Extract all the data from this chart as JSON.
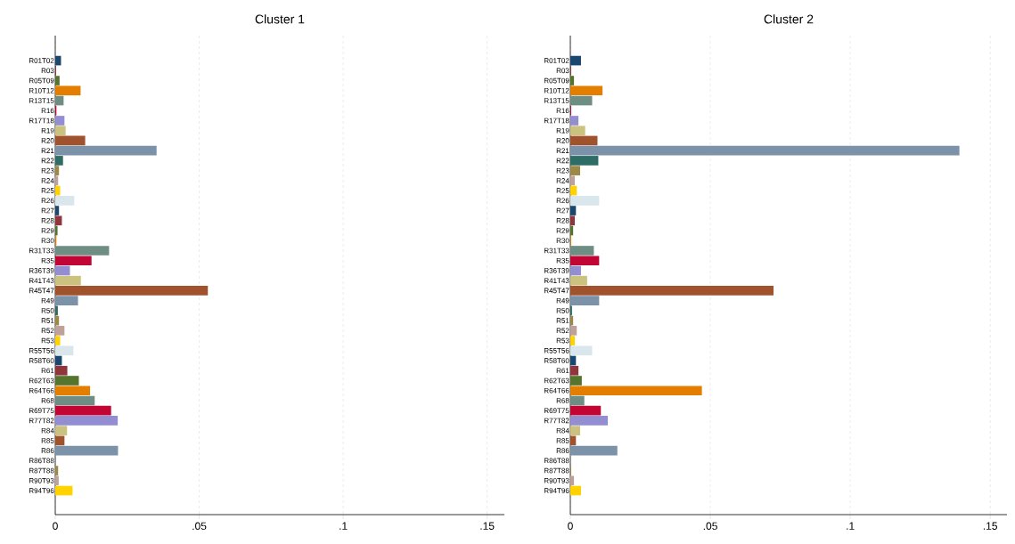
{
  "chart_data": [
    {
      "type": "bar",
      "orientation": "horizontal",
      "title": "Cluster 1",
      "grid": "x",
      "categories": [
        "R01T02",
        "R03",
        "R05T09",
        "R10T12",
        "R13T15",
        "R16",
        "R17T18",
        "R19",
        "R20",
        "R21",
        "R22",
        "R23",
        "R24",
        "R25",
        "R26",
        "R27",
        "R28",
        "R29",
        "R30",
        "R31T33",
        "R35",
        "R36T39",
        "R41T43",
        "R45T47",
        "R49",
        "R50",
        "R51",
        "R52",
        "R53",
        "R55T56",
        "R58T60",
        "R61",
        "R62T63",
        "R64T66",
        "R68",
        "R69T75",
        "R77T82",
        "R84",
        "R85",
        "R86",
        "R86T88",
        "R87T88",
        "R90T93",
        "R94T96"
      ],
      "values": [
        0.002,
        0.0003,
        0.0015,
        0.0088,
        0.0029,
        0.0004,
        0.0032,
        0.0036,
        0.0104,
        0.0352,
        0.0027,
        0.0013,
        0.001,
        0.0017,
        0.0066,
        0.0013,
        0.0023,
        0.0008,
        0.0004,
        0.0187,
        0.0126,
        0.0051,
        0.0089,
        0.053,
        0.0079,
        0.0009,
        0.0013,
        0.0032,
        0.0017,
        0.0063,
        0.0023,
        0.0042,
        0.0082,
        0.0121,
        0.0137,
        0.0194,
        0.0217,
        0.0041,
        0.0032,
        0.0218,
        0,
        0.001,
        0.0012,
        0.006
      ],
      "colors": [
        "#1a476f",
        "#90353b",
        "#55752f",
        "#e37e00",
        "#6e8e84",
        "#c10534",
        "#938dd2",
        "#cac27e",
        "#a0522d",
        "#7b92a8",
        "#2d6d66",
        "#9c8847",
        "#bfa19c",
        "#ffd200",
        "#d9e6eb",
        "#1a476f",
        "#90353b",
        "#55752f",
        "#e37e00",
        "#6e8e84",
        "#c10534",
        "#938dd2",
        "#cac27e",
        "#a0522d",
        "#7b92a8",
        "#2d6d66",
        "#9c8847",
        "#bfa19c",
        "#ffd200",
        "#d9e6eb",
        "#1a476f",
        "#90353b",
        "#55752f",
        "#e37e00",
        "#6e8e84",
        "#c10534",
        "#938dd2",
        "#cac27e",
        "#a0522d",
        "#7b92a8",
        "#2d6d66",
        "#9c8847",
        "#bfa19c",
        "#ffd200"
      ],
      "xlim": [
        0,
        0.156
      ],
      "xticks": [
        0,
        {
          "value": 0.05,
          "label": ".05"
        },
        {
          "value": 0.1,
          "label": ".1"
        },
        {
          "value": 0.15,
          "label": ".15"
        }
      ]
    },
    {
      "type": "bar",
      "orientation": "horizontal",
      "title": "Cluster 2",
      "grid": "x",
      "categories": [
        "R01T02",
        "R03",
        "R05T09",
        "R10T12",
        "R13T15",
        "R16",
        "R17T18",
        "R19",
        "R20",
        "R21",
        "R22",
        "R23",
        "R24",
        "R25",
        "R26",
        "R27",
        "R28",
        "R29",
        "R30",
        "R31T33",
        "R35",
        "R36T39",
        "R41T43",
        "R45T47",
        "R49",
        "R50",
        "R51",
        "R52",
        "R53",
        "R55T56",
        "R58T60",
        "R61",
        "R62T63",
        "R64T66",
        "R68",
        "R69T75",
        "R77T82",
        "R84",
        "R85",
        "R86",
        "R86T88",
        "R87T88",
        "R90T93",
        "R94T96"
      ],
      "values": [
        0.0038,
        0.0003,
        0.0013,
        0.0115,
        0.0078,
        0.0003,
        0.0029,
        0.0053,
        0.0097,
        0.139,
        0.01,
        0.0035,
        0.0016,
        0.0023,
        0.0103,
        0.002,
        0.0016,
        0.001,
        0.0003,
        0.0084,
        0.0103,
        0.0038,
        0.006,
        0.0726,
        0.0103,
        0.0006,
        0.001,
        0.0023,
        0.0016,
        0.0078,
        0.002,
        0.0029,
        0.0041,
        0.047,
        0.005,
        0.0109,
        0.0134,
        0.0035,
        0.002,
        0.0168,
        0,
        0.0003,
        0.0013,
        0.0038
      ],
      "colors": [
        "#1a476f",
        "#90353b",
        "#55752f",
        "#e37e00",
        "#6e8e84",
        "#c10534",
        "#938dd2",
        "#cac27e",
        "#a0522d",
        "#7b92a8",
        "#2d6d66",
        "#9c8847",
        "#bfa19c",
        "#ffd200",
        "#d9e6eb",
        "#1a476f",
        "#90353b",
        "#55752f",
        "#e37e00",
        "#6e8e84",
        "#c10534",
        "#938dd2",
        "#cac27e",
        "#a0522d",
        "#7b92a8",
        "#2d6d66",
        "#9c8847",
        "#bfa19c",
        "#ffd200",
        "#d9e6eb",
        "#1a476f",
        "#90353b",
        "#55752f",
        "#e37e00",
        "#6e8e84",
        "#c10534",
        "#938dd2",
        "#cac27e",
        "#a0522d",
        "#7b92a8",
        "#2d6d66",
        "#9c8847",
        "#bfa19c",
        "#ffd200"
      ],
      "xlim": [
        0,
        0.156
      ],
      "xticks": [
        0,
        {
          "value": 0.05,
          "label": ".05"
        },
        {
          "value": 0.1,
          "label": ".1"
        },
        {
          "value": 0.15,
          "label": ".15"
        }
      ]
    }
  ]
}
